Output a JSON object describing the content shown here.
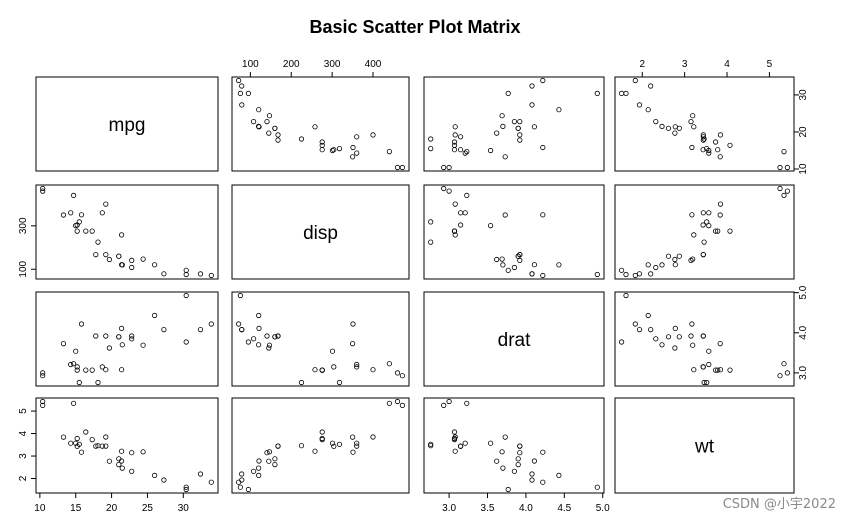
{
  "chart_data": {
    "type": "scatter",
    "title": "Basic Scatter Plot Matrix",
    "variables": [
      "mpg",
      "disp",
      "drat",
      "wt"
    ],
    "ranges": {
      "mpg": [
        10.4,
        33.9
      ],
      "disp": [
        71.1,
        472
      ],
      "drat": [
        2.76,
        4.93
      ],
      "wt": [
        1.513,
        5.424
      ]
    },
    "ticks": {
      "mpg": [
        10,
        15,
        20,
        25,
        30
      ],
      "disp": [
        100,
        200,
        300,
        400
      ],
      "drat": [
        3.0,
        3.5,
        4.0,
        4.5,
        5.0
      ],
      "wt": [
        2,
        3,
        4,
        5
      ]
    },
    "tick_labels": {
      "mpg": [
        "10",
        "15",
        "20",
        "25",
        "30"
      ],
      "mpg_right": [
        "10",
        "20",
        "30"
      ],
      "disp": [
        "100",
        "200",
        "300",
        "400"
      ],
      "disp_left": [
        "100",
        "300"
      ],
      "drat": [
        "3.0",
        "3.5",
        "4.0",
        "4.5",
        "5.0"
      ],
      "drat_right": [
        "3.0",
        "4.0",
        "5.0"
      ],
      "wt": [
        "2",
        "3",
        "4",
        "5"
      ]
    },
    "points": {
      "mpg": [
        21.0,
        21.0,
        22.8,
        21.4,
        18.7,
        18.1,
        14.3,
        24.4,
        22.8,
        19.2,
        17.8,
        16.4,
        17.3,
        15.2,
        10.4,
        10.4,
        14.7,
        32.4,
        30.4,
        33.9,
        21.5,
        15.5,
        15.2,
        13.3,
        19.2,
        27.3,
        26.0,
        30.4,
        15.8,
        19.7,
        15.0,
        21.4
      ],
      "disp": [
        160,
        160,
        108,
        258,
        360,
        225,
        360,
        146.7,
        140.8,
        167.6,
        167.6,
        275.8,
        275.8,
        275.8,
        472,
        460,
        440,
        78.7,
        75.7,
        71.1,
        120.1,
        318,
        304,
        350,
        400,
        79,
        120.3,
        95.1,
        351,
        145,
        301,
        121
      ],
      "drat": [
        3.9,
        3.9,
        3.85,
        3.08,
        3.15,
        2.76,
        3.21,
        3.69,
        3.92,
        3.92,
        3.92,
        3.07,
        3.07,
        3.07,
        2.93,
        3.0,
        3.23,
        4.08,
        4.93,
        4.22,
        3.7,
        2.76,
        3.15,
        3.73,
        3.08,
        4.08,
        4.43,
        3.77,
        4.22,
        3.62,
        3.54,
        4.11
      ],
      "wt": [
        2.62,
        2.875,
        2.32,
        3.215,
        3.44,
        3.46,
        3.57,
        3.19,
        3.15,
        3.44,
        3.44,
        4.07,
        3.73,
        3.78,
        5.25,
        5.424,
        5.345,
        2.2,
        1.615,
        1.835,
        2.465,
        3.52,
        3.435,
        3.84,
        3.845,
        1.935,
        2.14,
        1.513,
        3.17,
        2.77,
        3.57,
        2.78
      ]
    }
  },
  "watermark": "CSDN @小宇2022"
}
